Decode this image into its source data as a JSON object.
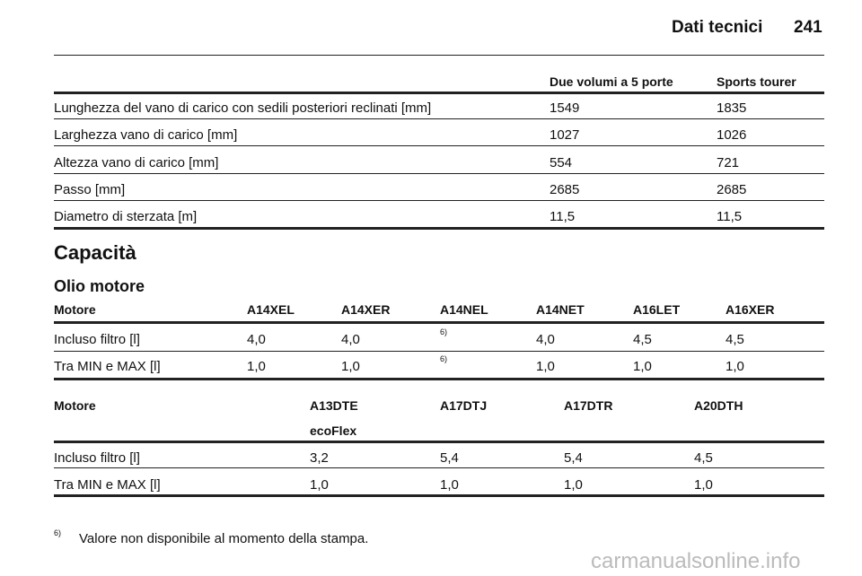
{
  "header": {
    "title": "Dati tecnici",
    "page": "241"
  },
  "table1": {
    "header": [
      "Due volumi a 5 porte",
      "Sports tourer"
    ],
    "rows": [
      [
        "Lunghezza del vano di carico con sedili posteriori reclinati [mm]",
        "1549",
        "1835"
      ],
      [
        "Larghezza vano di carico [mm]",
        "1027",
        "1026"
      ],
      [
        "Altezza vano di carico [mm]",
        "554",
        "721"
      ],
      [
        "Passo [mm]",
        "2685",
        "2685"
      ],
      [
        "Diametro di sterzata [m]",
        "11,5",
        "11,5"
      ]
    ]
  },
  "section": {
    "title": "Capacità",
    "subtitle": "Olio motore"
  },
  "table2": {
    "header": [
      "Motore",
      "A14XEL",
      "A14XER",
      "A14NEL",
      "A14NET",
      "A16LET",
      "A16XER"
    ],
    "rows": [
      [
        "Incluso filtro [l]",
        "4,0",
        "4,0",
        "6)",
        "4,0",
        "4,5",
        "4,5"
      ],
      [
        "Tra MIN e MAX [l]",
        "1,0",
        "1,0",
        "6)",
        "1,0",
        "1,0",
        "1,0"
      ]
    ]
  },
  "table3": {
    "header": [
      "Motore",
      "A13DTE",
      "A17DTJ",
      "A17DTR",
      "A20DTH"
    ],
    "header_sub": "ecoFlex",
    "rows": [
      [
        "Incluso filtro [l]",
        "3,2",
        "5,4",
        "5,4",
        "4,5"
      ],
      [
        "Tra MIN e MAX [l]",
        "1,0",
        "1,0",
        "1,0",
        "1,0"
      ]
    ]
  },
  "footnote": {
    "mark": "6)",
    "text": "Valore non disponibile al momento della stampa."
  },
  "watermark": "carmanualsonline.info"
}
